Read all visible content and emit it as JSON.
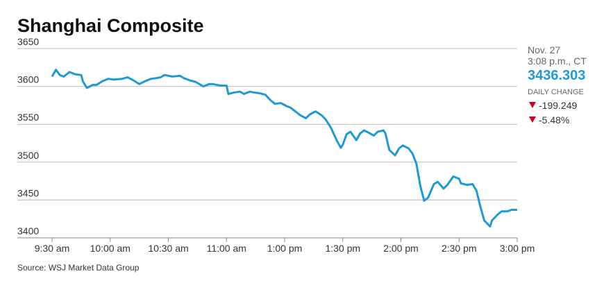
{
  "chart_data": {
    "type": "line",
    "title": "Shanghai Composite",
    "source": "Source: WSJ Market Data Group",
    "x": [
      0,
      2,
      4,
      6,
      9,
      12,
      15,
      16,
      18,
      21,
      23,
      26,
      29,
      32,
      36,
      39,
      42,
      45,
      48,
      51,
      54,
      56,
      58,
      62,
      66,
      68,
      71,
      74,
      78,
      81,
      83,
      87,
      90,
      91,
      94,
      97,
      99,
      102,
      104,
      107,
      110,
      113,
      115,
      118,
      121,
      123,
      125,
      128,
      131,
      133,
      136,
      139,
      141,
      144,
      147,
      149,
      150,
      152,
      154,
      157,
      159,
      161,
      164,
      166,
      168,
      171,
      172,
      174,
      177,
      179,
      181,
      184,
      186,
      188,
      190,
      192,
      194,
      197,
      199,
      202,
      204,
      207,
      210,
      211,
      214,
      217,
      219,
      221,
      223,
      226,
      227,
      230,
      232,
      235,
      237,
      240
    ],
    "series": [
      {
        "name": "Shanghai Composite",
        "color": "#1d9ad6",
        "values": [
          3613,
          3622,
          3615,
          3613,
          3619,
          3616,
          3615,
          3606,
          3598,
          3602,
          3602,
          3607,
          3610,
          3609,
          3610,
          3612,
          3608,
          3603,
          3607,
          3610,
          3611,
          3612,
          3615,
          3613,
          3614,
          3611,
          3608,
          3606,
          3600,
          3603,
          3603,
          3601,
          3601,
          3590,
          3592,
          3593,
          3590,
          3593,
          3592,
          3591,
          3589,
          3581,
          3577,
          3578,
          3574,
          3572,
          3568,
          3562,
          3558,
          3563,
          3567,
          3562,
          3557,
          3545,
          3528,
          3519,
          3523,
          3537,
          3540,
          3529,
          3538,
          3542,
          3538,
          3535,
          3540,
          3542,
          3538,
          3516,
          3509,
          3518,
          3522,
          3518,
          3511,
          3498,
          3469,
          3449,
          3453,
          3471,
          3474,
          3465,
          3470,
          3481,
          3478,
          3472,
          3470,
          3471,
          3462,
          3441,
          3423,
          3415,
          3423,
          3431,
          3435,
          3435,
          3437,
          3437
        ]
      }
    ],
    "xlim": [
      0,
      240
    ],
    "xticks": [
      {
        "value": 0,
        "label": "9:30 am"
      },
      {
        "value": 30,
        "label": "10:00 am"
      },
      {
        "value": 60,
        "label": "10:30 am"
      },
      {
        "value": 90,
        "label": "11:00 am"
      },
      {
        "value": 120,
        "label": "1:00 pm"
      },
      {
        "value": 150,
        "label": "1:30 pm"
      },
      {
        "value": 180,
        "label": "2:00 pm"
      },
      {
        "value": 210,
        "label": "2:30 pm"
      },
      {
        "value": 240,
        "label": "3:00 pm"
      }
    ],
    "ylim": [
      3400,
      3650
    ],
    "yticks": [
      3400,
      3450,
      3500,
      3550,
      3600,
      3650
    ],
    "grid": true
  },
  "quote": {
    "date": "Nov. 27",
    "time": "3:08 p.m., CT",
    "price": "3436.303",
    "change_label": "DAILY CHANGE",
    "change": "-199.249",
    "change_pct": "-5.48%"
  }
}
